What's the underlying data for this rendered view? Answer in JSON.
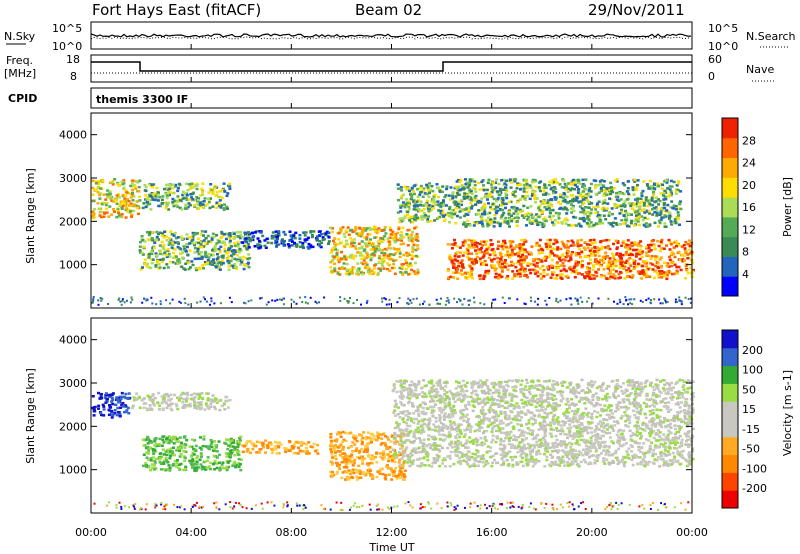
{
  "header": {
    "title": "Fort Hays East (fitACF)",
    "beam": "Beam 02",
    "date": "29/Nov/2011"
  },
  "panels": {
    "nsky": {
      "left_label": "N.Sky",
      "right_label": "N.Search",
      "left_ticks": [
        "10^5",
        "10^0"
      ],
      "right_ticks": [
        "10^5",
        "10^0"
      ]
    },
    "freq": {
      "left_label_1": "Freq.",
      "left_label_2": "[MHz]",
      "right_label": "Nave",
      "left_ticks": [
        "18",
        "8"
      ],
      "right_ticks": [
        "60",
        "0"
      ]
    },
    "cpid": {
      "label": "CPID",
      "text": "themis 3300 IF"
    }
  },
  "colors": {
    "power_scale": [
      "#0000ff",
      "#2266bb",
      "#3a8a55",
      "#55aa55",
      "#aadd55",
      "#ffdd00",
      "#ffaa00",
      "#ff6600",
      "#ee2200"
    ],
    "velocity_scale": [
      "#ee0000",
      "#ff4400",
      "#ff8800",
      "#ffaa22",
      "#c8c8c0",
      "#c8c8c0",
      "#99dd44",
      "#33aa33",
      "#3366cc",
      "#1111cc"
    ],
    "ground_scatter": "#c0c0b8"
  },
  "chart_data": [
    {
      "type": "heatmap",
      "panel": "power",
      "ylabel": "Slant Range [km]",
      "yticks": [
        "4000",
        "3000",
        "2000",
        "1000"
      ],
      "ylim": [
        0,
        4500
      ],
      "xticks": [
        "00:00",
        "04:00",
        "08:00",
        "12:00",
        "16:00",
        "20:00",
        "00:00"
      ],
      "xlim_hours": [
        0,
        24
      ],
      "colorbar": {
        "label": "Power [dB]",
        "ticks": [
          "28",
          "24",
          "20",
          "16",
          "12",
          "8",
          "4"
        ],
        "range": [
          0,
          30
        ]
      },
      "regions": [
        {
          "t0": 0.0,
          "t1": 1.9,
          "r0": 2100,
          "r1": 3000,
          "level": "high"
        },
        {
          "t0": 1.9,
          "t1": 6.3,
          "r0": 900,
          "r1": 1800,
          "level": "mid"
        },
        {
          "t0": 2.0,
          "t1": 5.5,
          "r0": 2300,
          "r1": 2900,
          "level": "mid"
        },
        {
          "t0": 6.0,
          "t1": 9.5,
          "r0": 1400,
          "r1": 1800,
          "level": "low"
        },
        {
          "t0": 9.5,
          "t1": 13.0,
          "r0": 800,
          "r1": 1900,
          "level": "high"
        },
        {
          "t0": 12.2,
          "t1": 14.5,
          "r0": 2000,
          "r1": 2900,
          "level": "mid"
        },
        {
          "t0": 14.2,
          "t1": 24.0,
          "r0": 700,
          "r1": 1600,
          "level": "very_high"
        },
        {
          "t0": 14.5,
          "t1": 23.5,
          "r0": 1900,
          "r1": 3000,
          "level": "mid"
        }
      ]
    },
    {
      "type": "heatmap",
      "panel": "velocity",
      "ylabel": "Slant Range [km]",
      "yticks": [
        "4000",
        "3000",
        "2000",
        "1000"
      ],
      "ylim": [
        0,
        4500
      ],
      "xticks": [
        "00:00",
        "04:00",
        "08:00",
        "12:00",
        "16:00",
        "20:00",
        "00:00"
      ],
      "xlim_hours": [
        0,
        24
      ],
      "xlabel": "Time UT",
      "colorbar": {
        "label": "Velocity [m s-1]",
        "ticks": [
          "200",
          "100",
          "50",
          "15",
          "-15",
          "-50",
          "-100",
          "-200"
        ],
        "range": [
          -250,
          250
        ]
      },
      "regions": [
        {
          "t0": 0.0,
          "t1": 1.5,
          "r0": 2200,
          "r1": 2800,
          "level": "blue"
        },
        {
          "t0": 1.5,
          "t1": 5.5,
          "r0": 2400,
          "r1": 2800,
          "level": "grey"
        },
        {
          "t0": 2.0,
          "t1": 6.0,
          "r0": 1000,
          "r1": 1800,
          "level": "green"
        },
        {
          "t0": 6.0,
          "t1": 9.0,
          "r0": 1400,
          "r1": 1700,
          "level": "orange"
        },
        {
          "t0": 9.5,
          "t1": 12.5,
          "r0": 800,
          "r1": 1900,
          "level": "orange"
        },
        {
          "t0": 12.0,
          "t1": 24.0,
          "r0": 1100,
          "r1": 3100,
          "level": "grey"
        }
      ]
    }
  ]
}
